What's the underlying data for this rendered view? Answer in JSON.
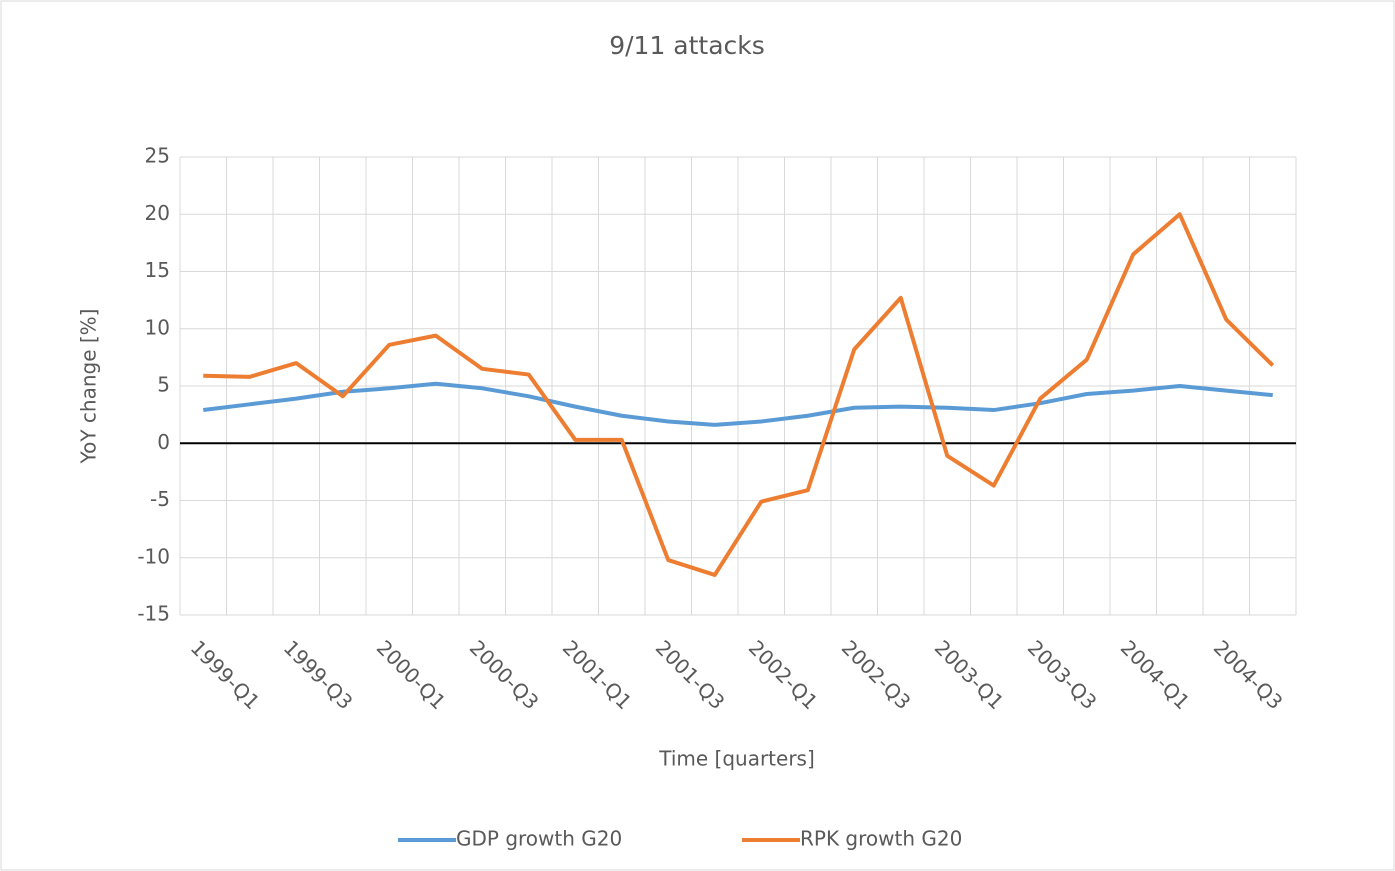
{
  "chart_data": {
    "type": "line",
    "title": "9/11 attacks",
    "y_label": "YoY change [%]",
    "x_label": "Time [quarters]",
    "categories": [
      "1999-Q1",
      null,
      "1999-Q3",
      null,
      "2000-Q1",
      null,
      "2000-Q3",
      null,
      "2001-Q1",
      null,
      "2001-Q3",
      null,
      "2002-Q1",
      null,
      "2002-Q3",
      null,
      "2003-Q1",
      null,
      "2003-Q3",
      null,
      "2004-Q1",
      null,
      "2004-Q3",
      null
    ],
    "series": [
      {
        "name": "GDP growth G20",
        "color": "#5b9bd5",
        "values": [
          2.9,
          3.4,
          3.9,
          4.5,
          4.8,
          5.2,
          4.8,
          4.1,
          3.2,
          2.4,
          1.9,
          1.6,
          1.9,
          2.4,
          3.1,
          3.2,
          3.1,
          2.9,
          3.5,
          4.3,
          4.6,
          5.0,
          4.6,
          4.2
        ]
      },
      {
        "name": "RPK growth G20",
        "color": "#ed7d31",
        "values": [
          5.9,
          5.8,
          7.0,
          4.1,
          8.6,
          9.4,
          6.5,
          6.0,
          0.3,
          0.3,
          -10.2,
          -11.5,
          -5.1,
          -4.1,
          8.2,
          12.7,
          -1.1,
          -3.7,
          3.9,
          7.3,
          16.5,
          20.0,
          10.8,
          6.8
        ]
      }
    ],
    "ylim": [
      -15,
      25
    ],
    "yticks": [
      -15,
      -10,
      -5,
      0,
      5,
      10,
      15,
      20,
      25
    ],
    "grid": true,
    "legend": "bottom"
  }
}
